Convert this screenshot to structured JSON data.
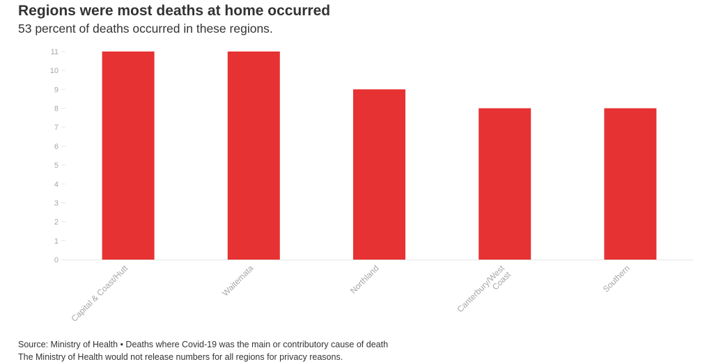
{
  "header": {
    "title": "Regions were most deaths at home occurred",
    "subtitle": "53 percent of deaths occurred in these regions."
  },
  "footer": {
    "source": "Source: Ministry of Health • Deaths where Covid-19 was the main or contributory cause of death",
    "note": "The Ministry of Health would not release numbers for all regions for privacy reasons."
  },
  "chart_data": {
    "type": "bar",
    "title": "Regions were most deaths at home occurred",
    "subtitle": "53 percent of deaths occurred in these regions.",
    "categories": [
      "Capital & Coast/Hutt",
      "Waitemata",
      "Northland",
      "Canterbury/West Coast",
      "Southern"
    ],
    "category_label_lines": [
      [
        "Capital & Coast/Hutt"
      ],
      [
        "Waitemata"
      ],
      [
        "Northland"
      ],
      [
        "Canterbury/West",
        "Coast"
      ],
      [
        "Southern"
      ]
    ],
    "values": [
      11,
      11,
      9,
      8,
      8
    ],
    "yticks": [
      0,
      1,
      2,
      3,
      4,
      5,
      6,
      7,
      8,
      9,
      10,
      11
    ],
    "ylim": [
      0,
      11
    ],
    "xlabel": "",
    "ylabel": "",
    "grid": false,
    "bar_color": "#e63232",
    "axis_label_color": "#a6a6a6"
  }
}
